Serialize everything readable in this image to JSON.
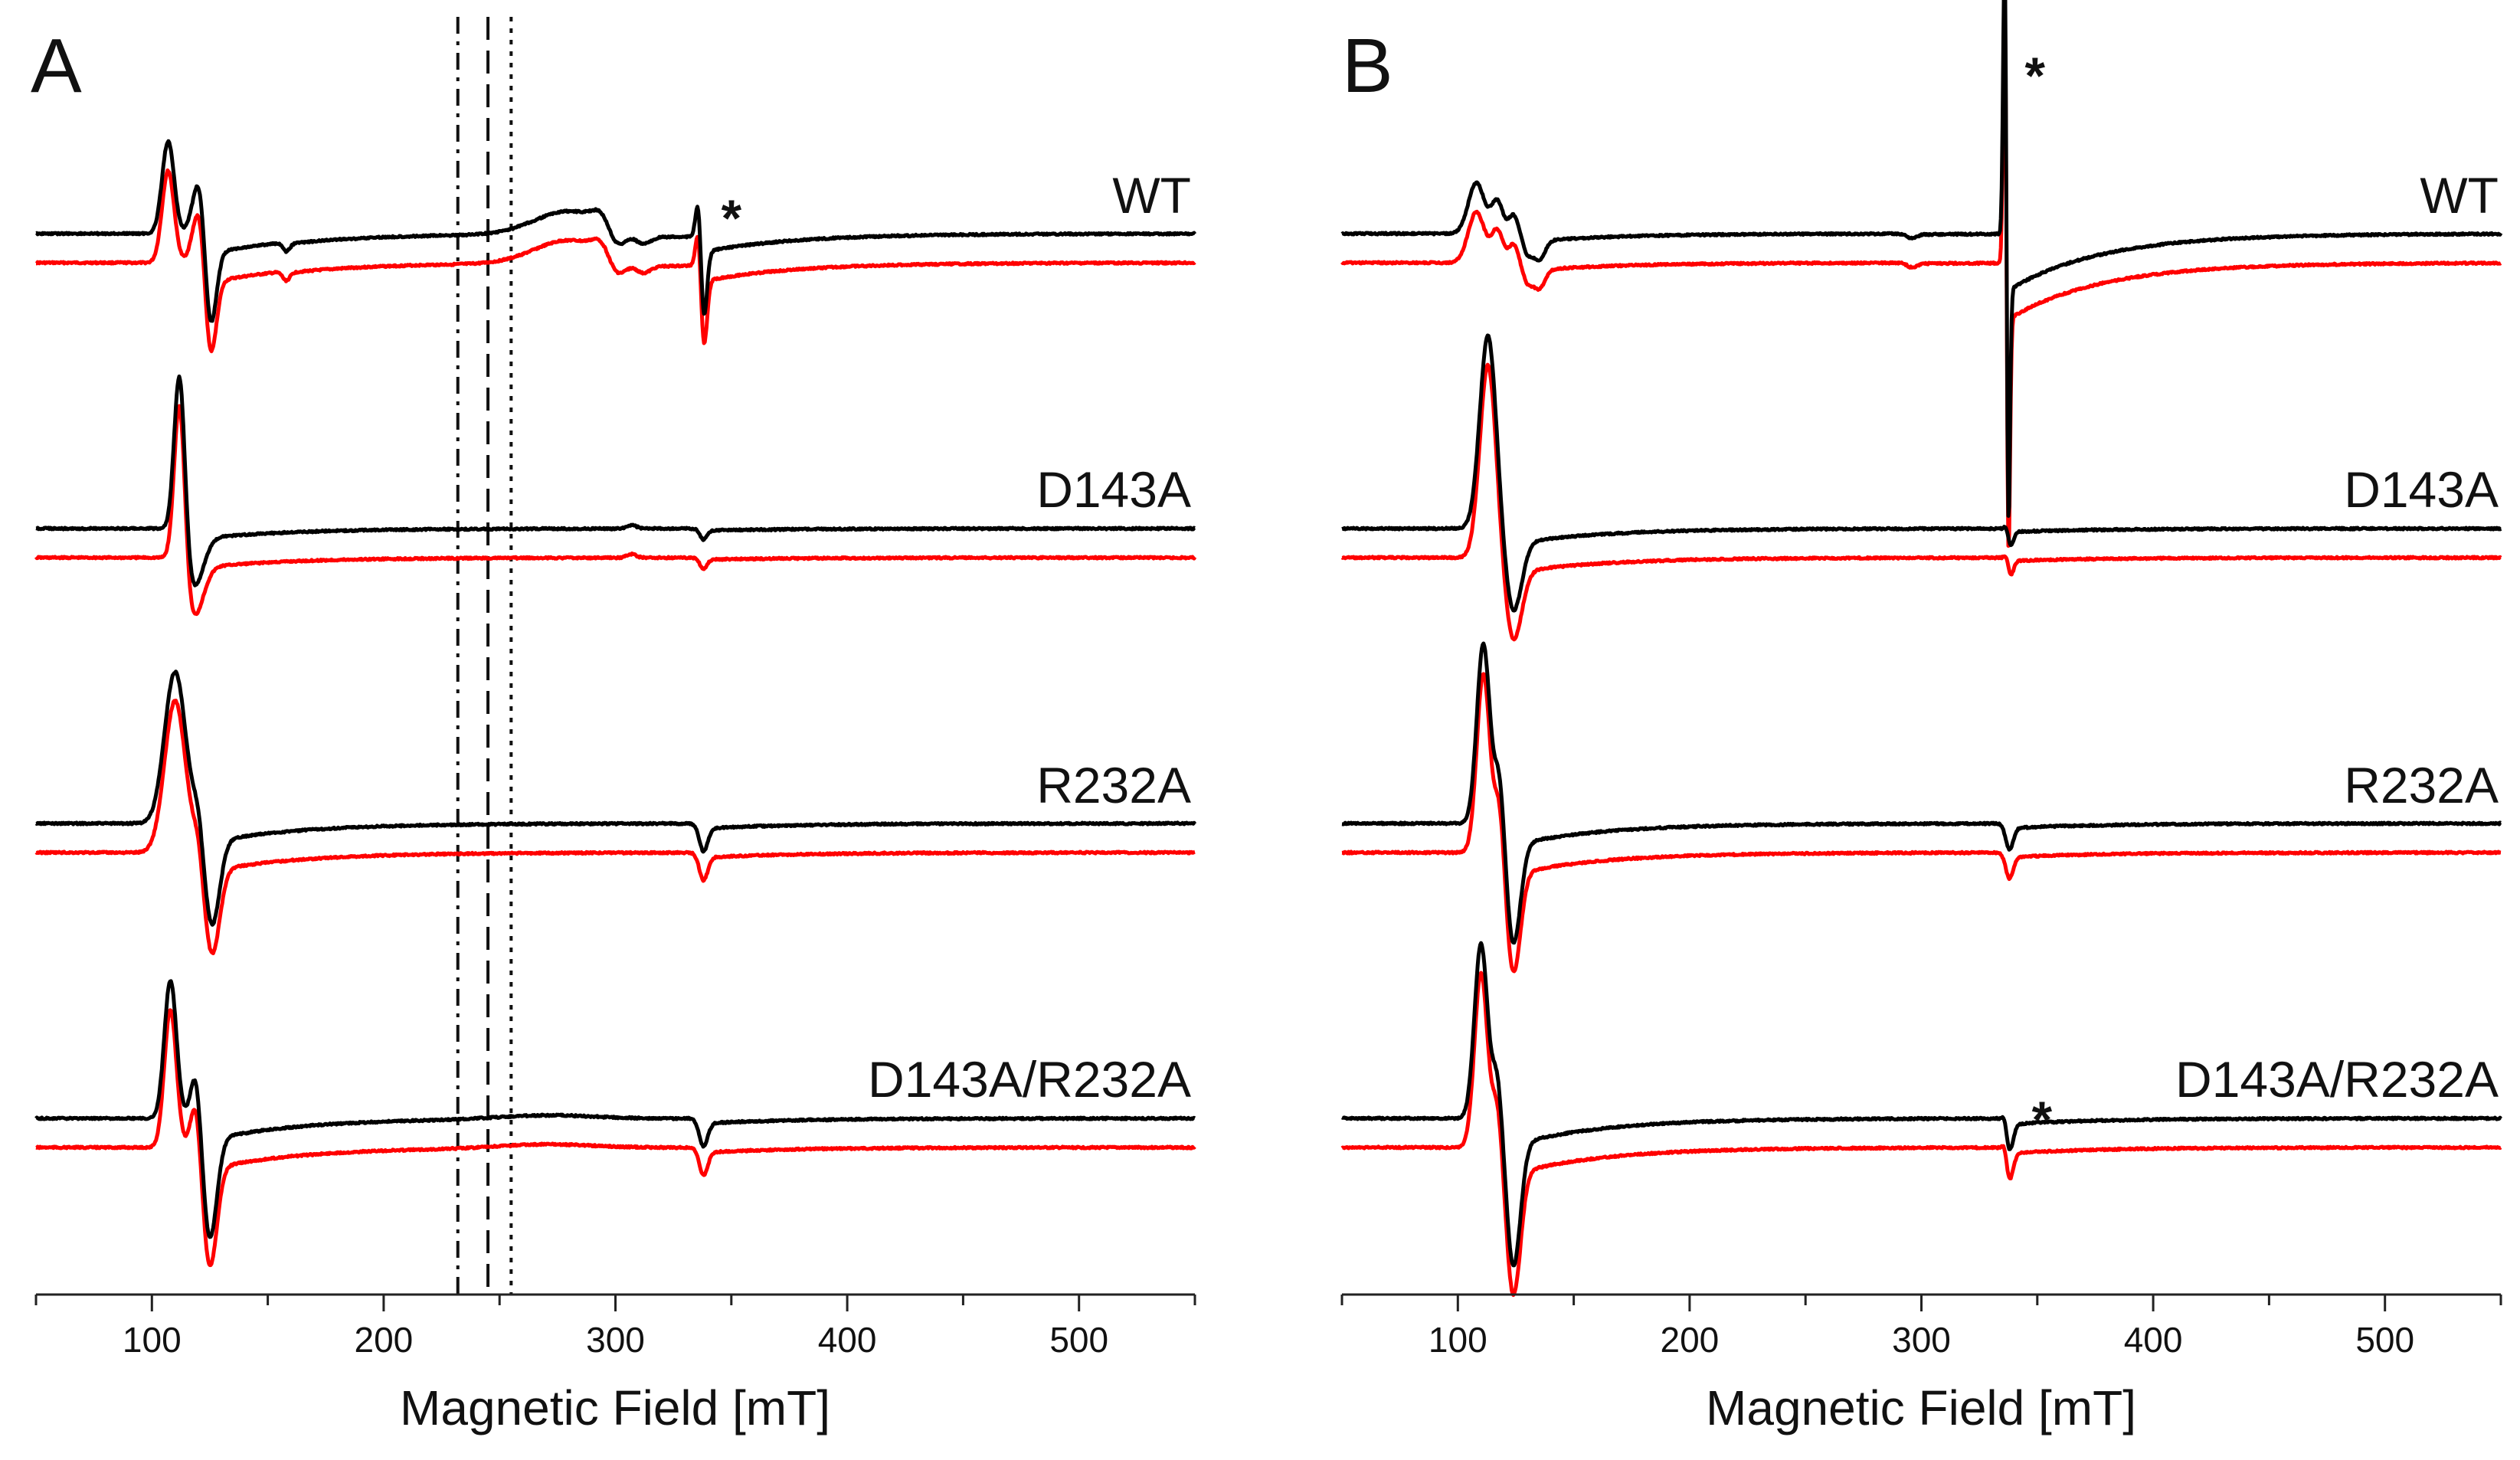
{
  "chart_data": [
    {
      "panel": "A",
      "type": "line",
      "xlabel": "Magnetic Field [mT]",
      "xlim": [
        50,
        550
      ],
      "xticks": [
        100,
        200,
        300,
        400,
        500
      ],
      "xtick_labels": [
        "100",
        "200",
        "300",
        "400",
        "500"
      ],
      "ylabel": "",
      "series_colors": {
        "upper": "#000000",
        "lower": "#ff0000"
      },
      "reference_lines_mT": [
        {
          "x": 232,
          "style": "dash-dot"
        },
        {
          "x": 245,
          "style": "dashed"
        },
        {
          "x": 255,
          "style": "dotted"
        }
      ],
      "traces": [
        {
          "label": "WT",
          "asterisk_at_mT": 350,
          "features": [
            {
              "x": 107,
              "amp": 1.0,
              "w": 2.6
            },
            {
              "x": 121,
              "amp": 0.7,
              "w": 3.0
            },
            {
              "x": 125,
              "amp": -1.2,
              "w": 2.5
            },
            {
              "x": 158,
              "amp": -0.1,
              "w": 1.5
            },
            {
              "x": 280,
              "amp": 0.25,
              "w": 15.0
            },
            {
              "x": 295,
              "amp": 0.15,
              "w": 4.0
            },
            {
              "x": 300,
              "amp": -0.25,
              "w": 4.0
            },
            {
              "x": 312,
              "amp": -0.1,
              "w": 3.0
            },
            {
              "x": 336,
              "amp": 0.55,
              "w": 1.2
            },
            {
              "x": 338,
              "amp": -0.95,
              "w": 1.4
            }
          ]
        },
        {
          "label": "D143A",
          "features": [
            {
              "x": 112,
              "amp": 1.85,
              "w": 2.3
            },
            {
              "x": 118,
              "amp": -0.65,
              "w": 4.0
            },
            {
              "x": 307,
              "amp": 0.04,
              "w": 2.0
            },
            {
              "x": 338,
              "amp": -0.12,
              "w": 1.5
            }
          ]
        },
        {
          "label": "R232A",
          "features": [
            {
              "x": 110,
              "amp": 1.65,
              "w": 4.5
            },
            {
              "x": 120,
              "amp": 0.2,
              "w": 1.8
            },
            {
              "x": 126,
              "amp": -1.1,
              "w": 3.2
            },
            {
              "x": 338,
              "amp": -0.3,
              "w": 1.8
            }
          ]
        },
        {
          "label": "D143A/R232A",
          "features": [
            {
              "x": 108,
              "amp": 1.5,
              "w": 2.6
            },
            {
              "x": 119,
              "amp": 0.55,
              "w": 2.2
            },
            {
              "x": 125,
              "amp": -1.3,
              "w": 3.0
            },
            {
              "x": 270,
              "amp": 0.04,
              "w": 20.0
            },
            {
              "x": 338,
              "amp": -0.3,
              "w": 1.8
            }
          ]
        }
      ]
    },
    {
      "panel": "B",
      "type": "line",
      "xlabel": "Magnetic Field [mT]",
      "xlim": [
        50,
        550
      ],
      "xticks": [
        100,
        200,
        300,
        400,
        500
      ],
      "xtick_labels": [
        "100",
        "200",
        "300",
        "400",
        "500"
      ],
      "ylabel": "",
      "series_colors": {
        "upper": "#000000",
        "lower": "#ff0000"
      },
      "traces": [
        {
          "label": "WT",
          "asterisk_at_mT": 349,
          "features": [
            {
              "x": 108,
              "amp": 0.55,
              "w": 3.5
            },
            {
              "x": 117,
              "amp": 0.35,
              "w": 2.5
            },
            {
              "x": 124,
              "amp": 0.2,
              "w": 2.0
            },
            {
              "x": 130,
              "amp": -0.2,
              "w": 2.0
            },
            {
              "x": 135,
              "amp": -0.25,
              "w": 2.5
            },
            {
              "x": 296,
              "amp": -0.05,
              "w": 2.0
            },
            {
              "x": 336,
              "amp": 3.3,
              "w": 0.7
            },
            {
              "x": 337.5,
              "amp": -3.4,
              "w": 0.7
            }
          ]
        },
        {
          "label": "D143A",
          "features": [
            {
              "x": 113,
              "amp": 2.1,
              "w": 3.5
            },
            {
              "x": 124,
              "amp": -0.9,
              "w": 3.5
            },
            {
              "x": 337,
              "amp": 0.06,
              "w": 1.0
            },
            {
              "x": 338.5,
              "amp": -0.2,
              "w": 1.2
            }
          ]
        },
        {
          "label": "R232A",
          "features": [
            {
              "x": 111,
              "amp": 1.95,
              "w": 2.8
            },
            {
              "x": 118,
              "amp": 0.6,
              "w": 2.0
            },
            {
              "x": 124,
              "amp": -1.3,
              "w": 3.0
            },
            {
              "x": 338,
              "amp": -0.28,
              "w": 1.6
            }
          ]
        },
        {
          "label": "D143A/R232A",
          "asterisk_at_mT": 352,
          "features": [
            {
              "x": 110,
              "amp": 1.9,
              "w": 2.8
            },
            {
              "x": 117,
              "amp": 0.5,
              "w": 2.0
            },
            {
              "x": 124,
              "amp": -1.6,
              "w": 3.0
            },
            {
              "x": 336,
              "amp": 0.12,
              "w": 1.0
            },
            {
              "x": 338,
              "amp": -0.35,
              "w": 1.6
            }
          ]
        }
      ]
    }
  ]
}
